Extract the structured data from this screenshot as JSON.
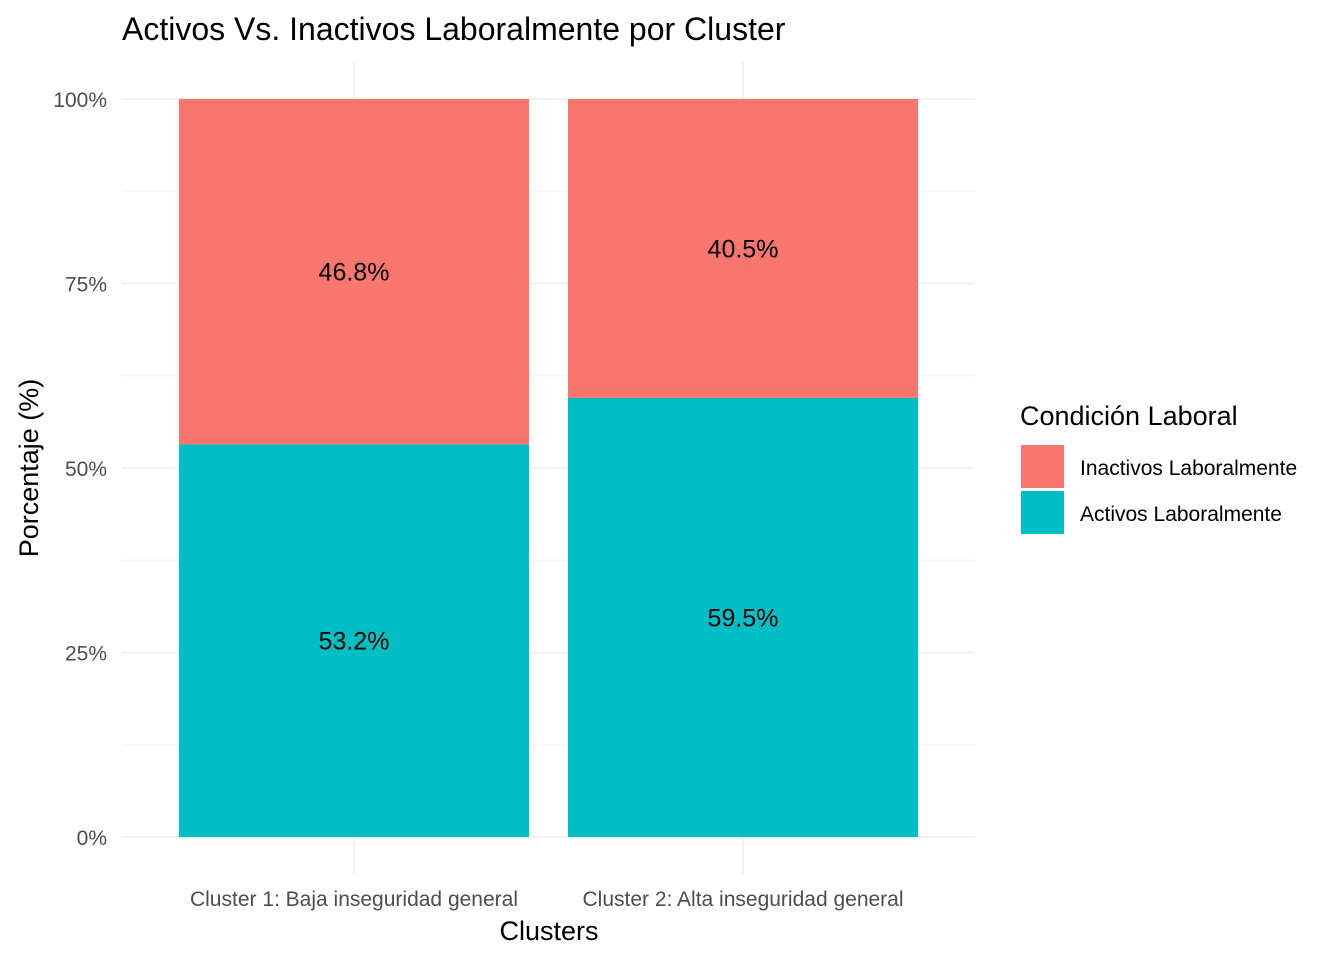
{
  "chart_data": {
    "type": "bar",
    "stacked": true,
    "title": "Activos Vs. Inactivos Laboralmente por Cluster",
    "xlabel": "Clusters",
    "ylabel": "Porcentaje (%)",
    "ylim": [
      0,
      100
    ],
    "yticks": [
      "0%",
      "25%",
      "50%",
      "75%",
      "100%"
    ],
    "categories": [
      "Cluster 1: Baja inseguridad general",
      "Cluster 2: Alta inseguridad general"
    ],
    "series": [
      {
        "name": "Activos Laboralmente",
        "values": [
          53.2,
          59.5
        ],
        "labels": [
          "53.2%",
          "59.5%"
        ],
        "color": "#00BFC4"
      },
      {
        "name": "Inactivos Laboralmente",
        "values": [
          46.8,
          40.5
        ],
        "labels": [
          "46.8%",
          "40.5%"
        ],
        "color": "#F8766D"
      }
    ],
    "legend": {
      "title": "Condición Laboral",
      "position": "right",
      "order": [
        "Inactivos Laboralmente",
        "Activos Laboralmente"
      ]
    },
    "grid": true
  }
}
